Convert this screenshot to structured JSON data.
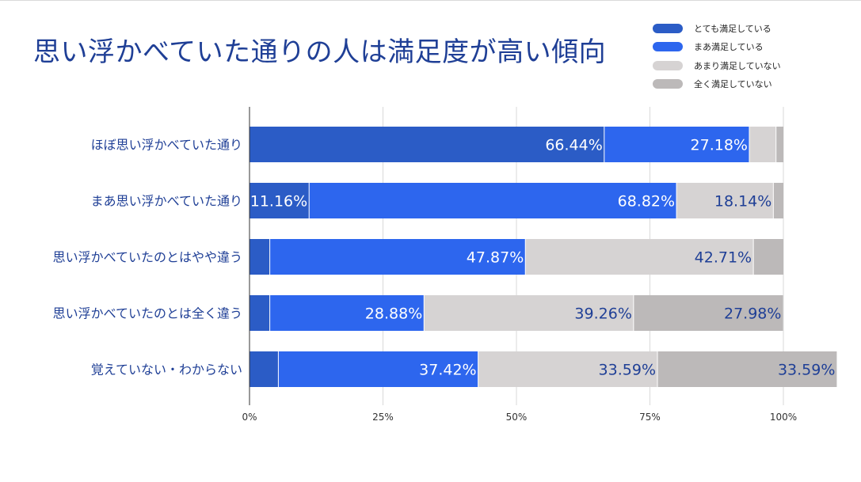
{
  "page": {
    "title": "思い浮かべていた通りの人は満足度が高い傾向"
  },
  "chart_data": {
    "type": "bar",
    "orientation": "horizontal",
    "stacked": "percent",
    "title": "思い浮かべていた通りの人は満足度が高い傾向",
    "xlabel": "",
    "ylabel": "",
    "xlim": [
      0,
      100
    ],
    "x_ticks": [
      "0%",
      "25%",
      "50%",
      "75%",
      "100%"
    ],
    "grid": true,
    "legend_position": "top-right",
    "categories": [
      "ほぼ思い浮かべていた通り",
      "まあ思い浮かべていた通り",
      "思い浮かべていたのとはやや違う",
      "思い浮かべていたのとは全く違う",
      "覚えていない・わからない"
    ],
    "series": [
      {
        "name": "とても満足している",
        "color": "#2b5cc6",
        "label_color": "#ffffff",
        "values": [
          66.44,
          11.16,
          3.8,
          3.8,
          5.4
        ]
      },
      {
        "name": "まあ満足している",
        "color": "#2d66ee",
        "label_color": "#ffffff",
        "values": [
          27.18,
          68.82,
          47.87,
          28.88,
          37.42
        ]
      },
      {
        "name": "あまり満足していない",
        "color": "#d6d3d3",
        "label_color": "#1f3f96",
        "values": [
          5.0,
          18.14,
          42.71,
          39.26,
          33.59
        ]
      },
      {
        "name": "全く満足していない",
        "color": "#bcb9b9",
        "label_color": "#1f3f96",
        "values": [
          1.38,
          1.88,
          5.62,
          27.98,
          33.59
        ]
      }
    ],
    "data_labels": [
      [
        "66.44%",
        "27.18%",
        "",
        ""
      ],
      [
        "11.16%",
        "68.82%",
        "18.14%",
        ""
      ],
      [
        "",
        "47.87%",
        "42.71%",
        ""
      ],
      [
        "",
        "28.88%",
        "39.26%",
        "27.98%"
      ],
      [
        "",
        "37.42%",
        "33.59%",
        "33.59%"
      ]
    ]
  }
}
